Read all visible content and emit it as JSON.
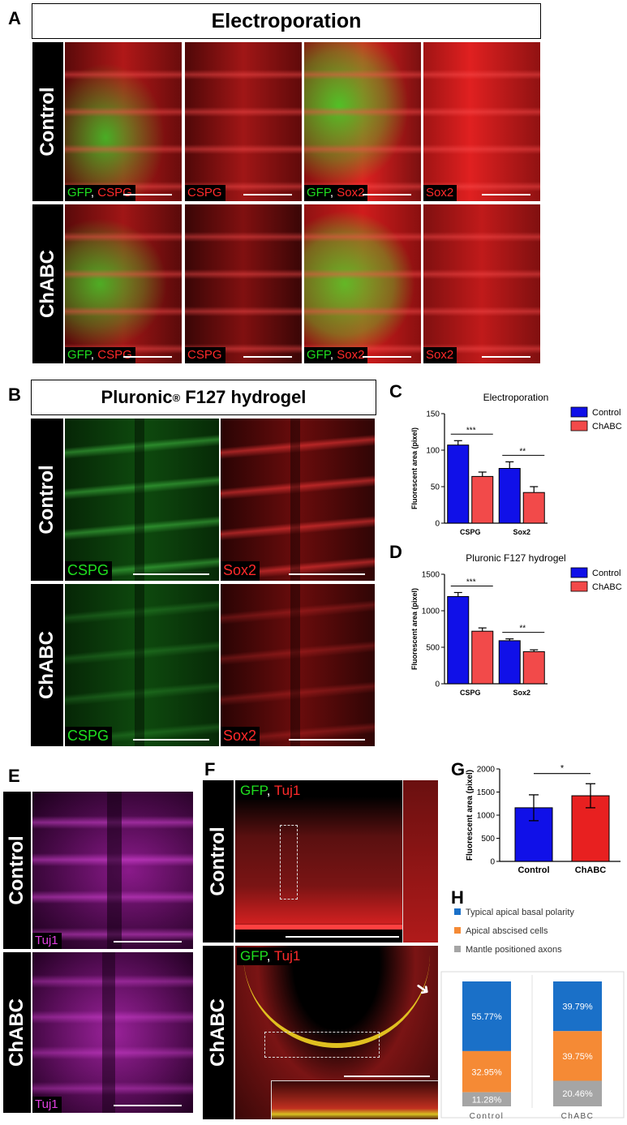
{
  "panels": {
    "A": {
      "letter": "A",
      "title": "Electroporation",
      "rows": [
        {
          "label": "Control",
          "tiles": [
            {
              "parts": [
                "GFP",
                ", ",
                "CSPG"
              ],
              "colors": [
                "g",
                "w",
                "r"
              ]
            },
            {
              "parts": [
                "CSPG"
              ],
              "colors": [
                "r"
              ]
            },
            {
              "parts": [
                "GFP",
                ", ",
                "Sox2"
              ],
              "colors": [
                "g",
                "w",
                "r"
              ]
            },
            {
              "parts": [
                "Sox2"
              ],
              "colors": [
                "r"
              ]
            }
          ]
        },
        {
          "label": "ChABC",
          "tiles": [
            {
              "parts": [
                "GFP",
                ", ",
                "CSPG"
              ],
              "colors": [
                "g",
                "w",
                "r"
              ]
            },
            {
              "parts": [
                "CSPG"
              ],
              "colors": [
                "r"
              ]
            },
            {
              "parts": [
                "GFP",
                ", ",
                "Sox2"
              ],
              "colors": [
                "g",
                "w",
                "r"
              ]
            },
            {
              "parts": [
                "Sox2"
              ],
              "colors": [
                "r"
              ]
            }
          ]
        }
      ]
    },
    "B": {
      "letter": "B",
      "title_main": "Pluronic",
      "title_sup": "®",
      "title_tail": " F127 hydrogel",
      "rows": [
        {
          "label": "Control",
          "tiles": [
            {
              "text": "CSPG",
              "color": "g"
            },
            {
              "text": "Sox2",
              "color": "r"
            }
          ]
        },
        {
          "label": "ChABC",
          "tiles": [
            {
              "text": "CSPG",
              "color": "g"
            },
            {
              "text": "Sox2",
              "color": "r"
            }
          ]
        }
      ]
    },
    "E": {
      "letter": "E",
      "rows": [
        {
          "label": "Control",
          "marker": "Tuj1"
        },
        {
          "label": "ChABC",
          "marker": "Tuj1"
        }
      ]
    },
    "F": {
      "letter": "F",
      "rows": [
        {
          "label": "Control",
          "parts": [
            "GFP",
            ", ",
            "Tuj1"
          ]
        },
        {
          "label": "ChABC",
          "parts": [
            "GFP",
            ", ",
            "Tuj1"
          ]
        }
      ]
    },
    "C": {
      "letter": "C"
    },
    "D": {
      "letter": "D"
    },
    "G": {
      "letter": "G"
    },
    "H": {
      "letter": "H"
    }
  },
  "chart_data": [
    {
      "id": "C",
      "type": "bar",
      "title": "Electroporation",
      "ylabel": "Fluorescent area (pixel)",
      "categories": [
        "CSPG",
        "Sox2"
      ],
      "ylim": [
        0,
        150
      ],
      "yticks": [
        0,
        50,
        100,
        150
      ],
      "series": [
        {
          "name": "Control",
          "color": "#1010e8",
          "values": [
            107,
            75
          ],
          "errors": [
            6,
            9
          ]
        },
        {
          "name": "ChABC",
          "color": "#f24a4a",
          "values": [
            64,
            42
          ],
          "errors": [
            6,
            8
          ]
        }
      ],
      "significance": [
        "***",
        "**"
      ],
      "legend": "top-right"
    },
    {
      "id": "D",
      "type": "bar",
      "title": "Pluronic F127 hydrogel",
      "ylabel": "Fluorescent area (pixel)",
      "categories": [
        "CSPG",
        "Sox2"
      ],
      "ylim": [
        0,
        1500
      ],
      "yticks": [
        0,
        500,
        1000,
        1500
      ],
      "series": [
        {
          "name": "Control",
          "color": "#1010e8",
          "values": [
            1195,
            590
          ],
          "errors": [
            55,
            25
          ]
        },
        {
          "name": "ChABC",
          "color": "#f24a4a",
          "values": [
            720,
            440
          ],
          "errors": [
            45,
            25
          ]
        }
      ],
      "significance": [
        "***",
        "**"
      ],
      "legend": "top-right"
    },
    {
      "id": "G",
      "type": "bar",
      "ylabel": "Fluorescent area (pixel)",
      "categories": [
        "Control",
        "ChABC"
      ],
      "ylim": [
        0,
        2000
      ],
      "yticks": [
        0,
        500,
        1000,
        1500,
        2000
      ],
      "values": [
        1160,
        1420
      ],
      "errors": [
        280,
        260
      ],
      "colors": [
        "#1010e8",
        "#e82020"
      ],
      "significance": "*"
    },
    {
      "id": "H",
      "type": "bar",
      "stacked": true,
      "categories": [
        "Control",
        "ChABC"
      ],
      "legend": "top-left",
      "series": [
        {
          "name": "Typical apical basal polarity",
          "color": "#1a70c8",
          "values": [
            55.77,
            39.79
          ],
          "labels": [
            "55.77%",
            "39.79%"
          ]
        },
        {
          "name": "Apical abscised cells",
          "color": "#f58a35",
          "values": [
            32.95,
            39.75
          ],
          "labels": [
            "32.95%",
            "39.75%"
          ]
        },
        {
          "name": "Mantle positioned axons",
          "color": "#a5a5a5",
          "values": [
            11.28,
            20.46
          ],
          "labels": [
            "11.28%",
            "20.46%"
          ]
        }
      ]
    }
  ]
}
